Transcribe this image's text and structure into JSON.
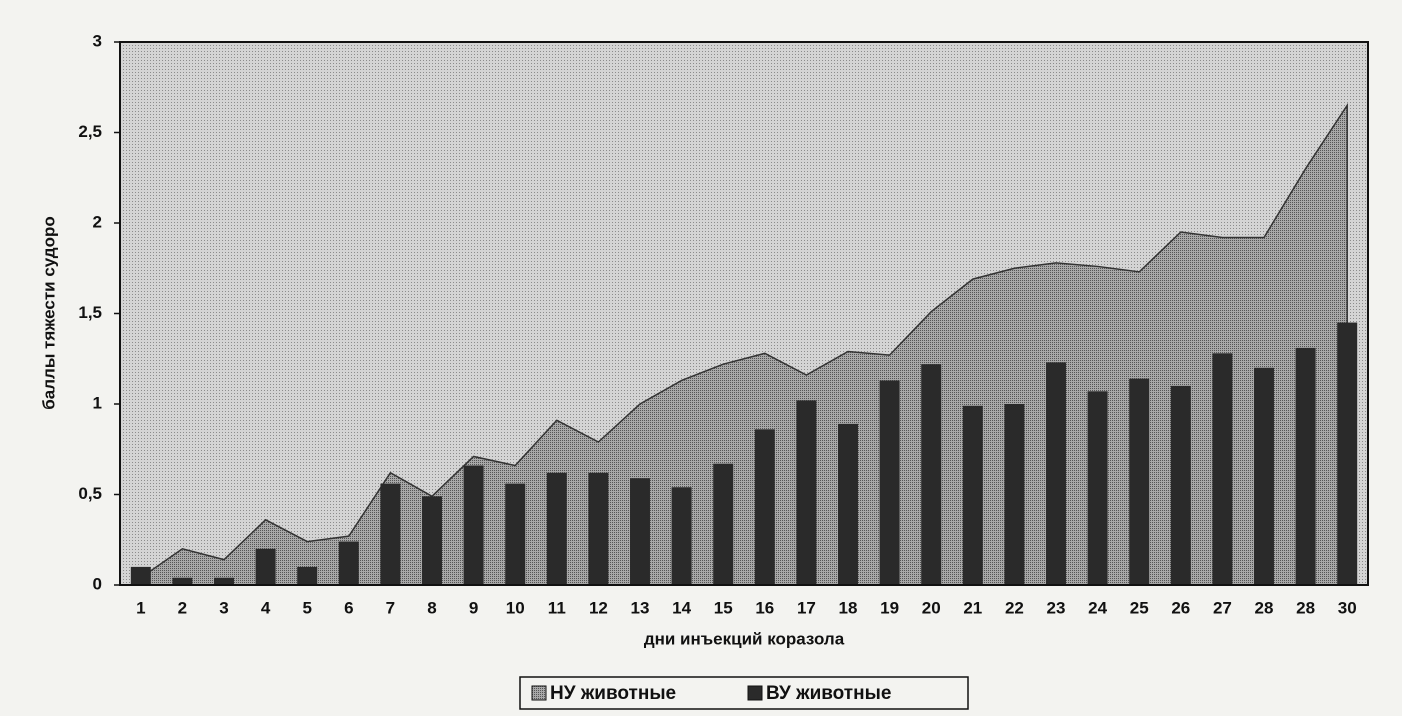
{
  "chart_data": {
    "type": "bar",
    "categories": [
      "1",
      "2",
      "3",
      "4",
      "5",
      "6",
      "7",
      "8",
      "9",
      "10",
      "11",
      "12",
      "13",
      "14",
      "15",
      "16",
      "17",
      "18",
      "19",
      "20",
      "21",
      "22",
      "23",
      "24",
      "25",
      "26",
      "27",
      "28",
      "28",
      "30"
    ],
    "x_label": "дни инъекций коразола",
    "y_label": "баллы тяжести судоро",
    "ylim": [
      0,
      3
    ],
    "yticks": [
      0,
      {
        "value": 0.5,
        "label": "0,5"
      },
      1,
      {
        "value": 1.5,
        "label": "1,5"
      },
      2,
      {
        "value": 2.5,
        "label": "2,5"
      },
      3
    ],
    "grid": false,
    "legend": "bottom",
    "series": [
      {
        "name": "НУ животные",
        "type": "area",
        "color": "#8a8a8a",
        "values": [
          0.04,
          0.2,
          0.14,
          0.36,
          0.24,
          0.27,
          0.62,
          0.49,
          0.71,
          0.66,
          0.91,
          0.79,
          1.0,
          1.13,
          1.22,
          1.28,
          1.16,
          1.29,
          1.27,
          1.51,
          1.69,
          1.75,
          1.78,
          1.76,
          1.73,
          1.95,
          1.92,
          1.92,
          2.3,
          2.65
        ]
      },
      {
        "name": "ВУ животные",
        "type": "bar",
        "color": "#2a2a2a",
        "values": [
          0.1,
          0.04,
          0.04,
          0.2,
          0.1,
          0.24,
          0.56,
          0.49,
          0.66,
          0.56,
          0.62,
          0.62,
          0.59,
          0.54,
          0.67,
          0.86,
          1.02,
          0.89,
          1.13,
          1.22,
          0.99,
          1.0,
          1.23,
          1.07,
          1.14,
          1.1,
          1.28,
          1.2,
          1.31,
          1.45
        ]
      }
    ]
  }
}
